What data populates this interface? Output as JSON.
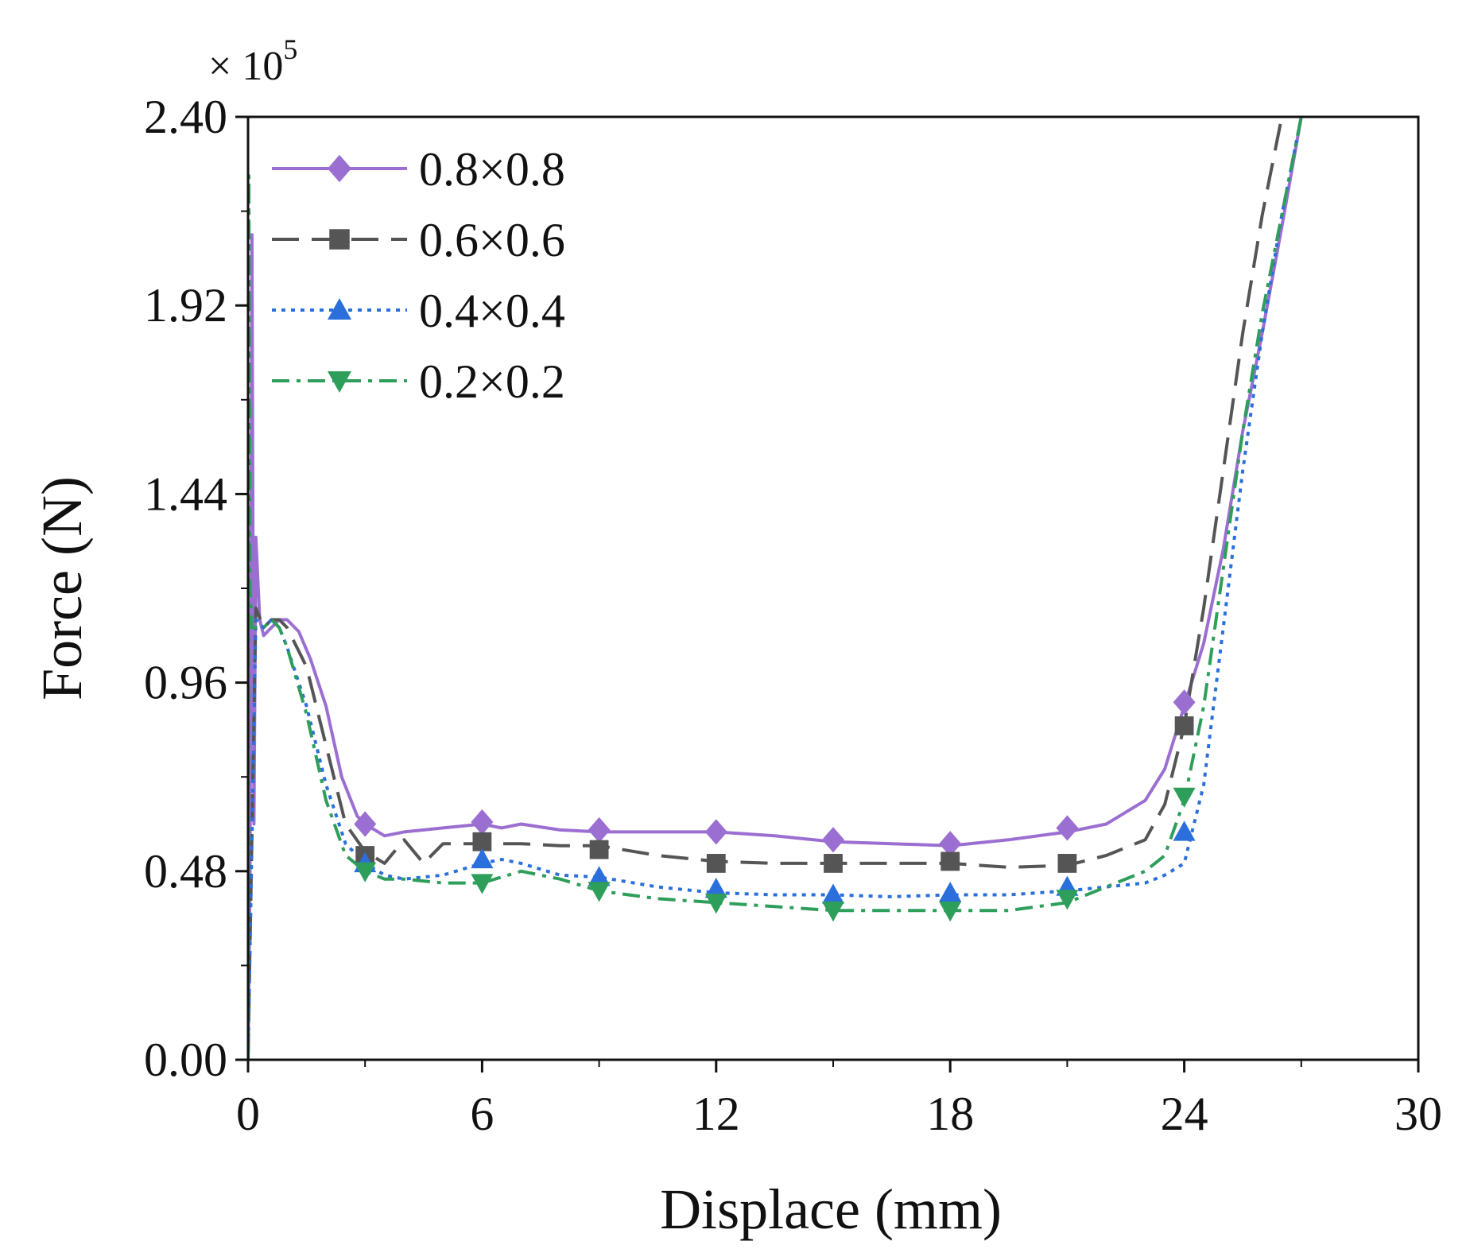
{
  "chart_data": {
    "type": "line",
    "title": "",
    "xlabel": "Displace (mm)",
    "ylabel": "Force (N)",
    "y_multiplier": {
      "base": "× 10",
      "exponent": "5"
    },
    "xlim": [
      0,
      30
    ],
    "ylim": [
      0,
      2.4
    ],
    "xticks": [
      "0",
      "6",
      "12",
      "18",
      "24",
      "30"
    ],
    "yticks": [
      "0.00",
      "0.48",
      "0.96",
      "1.44",
      "1.92",
      "2.40"
    ],
    "grid": false,
    "legend_position": "top-left",
    "series": [
      {
        "name": "0.8×0.8",
        "color": "#9b6fd1",
        "dash": "solid",
        "marker": "diamond",
        "x": [
          0,
          0.05,
          0.1,
          0.15,
          0.2,
          0.3,
          0.4,
          0.6,
          0.8,
          1.0,
          1.3,
          1.6,
          2.0,
          2.4,
          2.8,
          3.0,
          3.5,
          4.0,
          5.0,
          6.0,
          6.5,
          7.0,
          8.0,
          9.0,
          10.5,
          12.0,
          13.5,
          15.0,
          16.5,
          18.0,
          19.5,
          21.0,
          22.0,
          23.0,
          23.5,
          24.0,
          24.5,
          25.0,
          25.5,
          26.0,
          26.5,
          27.0
        ],
        "y": [
          0.0,
          0.46,
          2.1,
          0.6,
          1.33,
          1.12,
          1.08,
          1.1,
          1.12,
          1.12,
          1.09,
          1.02,
          0.9,
          0.72,
          0.62,
          0.6,
          0.57,
          0.58,
          0.59,
          0.6,
          0.59,
          0.6,
          0.585,
          0.58,
          0.58,
          0.58,
          0.57,
          0.555,
          0.55,
          0.545,
          0.56,
          0.58,
          0.6,
          0.66,
          0.74,
          0.9,
          1.06,
          1.3,
          1.6,
          1.85,
          2.12,
          2.4
        ],
        "marker_x": [
          3,
          6,
          9,
          12,
          15,
          18,
          21,
          24
        ],
        "marker_y": [
          0.6,
          0.605,
          0.585,
          0.58,
          0.56,
          0.55,
          0.59,
          0.91
        ]
      },
      {
        "name": "0.6×0.6",
        "color": "#555555",
        "dash": "dashed",
        "marker": "square",
        "x": [
          0,
          0.2,
          0.4,
          0.6,
          0.8,
          1.0,
          1.5,
          2.0,
          2.5,
          3.0,
          3.5,
          4.0,
          4.5,
          5.0,
          6.0,
          7.0,
          8.0,
          9.0,
          10.5,
          12.0,
          13.5,
          15.0,
          16.5,
          18.0,
          19.5,
          21.0,
          22.0,
          23.0,
          23.5,
          24.0,
          24.5,
          25.0,
          25.5,
          26.0,
          26.5
        ],
        "y": [
          0.0,
          1.15,
          1.1,
          1.12,
          1.12,
          1.1,
          1.0,
          0.8,
          0.6,
          0.53,
          0.5,
          0.56,
          0.5,
          0.55,
          0.55,
          0.55,
          0.545,
          0.545,
          0.52,
          0.505,
          0.5,
          0.5,
          0.5,
          0.5,
          0.49,
          0.495,
          0.52,
          0.56,
          0.65,
          0.85,
          1.15,
          1.5,
          1.85,
          2.15,
          2.4
        ],
        "marker_x": [
          3,
          6,
          9,
          12,
          15,
          18,
          21,
          24
        ],
        "marker_y": [
          0.52,
          0.555,
          0.535,
          0.5,
          0.5,
          0.505,
          0.5,
          0.85
        ]
      },
      {
        "name": "0.4×0.4",
        "color": "#2a6fdb",
        "dash": "dotted",
        "marker": "triangle-up",
        "x": [
          0,
          0.2,
          0.4,
          0.6,
          0.8,
          1.0,
          1.5,
          2.0,
          2.5,
          3.0,
          3.5,
          4.0,
          5.0,
          6.0,
          6.5,
          7.0,
          8.0,
          9.0,
          10.5,
          12.0,
          13.5,
          15.0,
          16.5,
          18.0,
          19.5,
          21.0,
          22.0,
          23.0,
          23.5,
          24.0,
          24.5,
          25.0,
          25.5,
          26.0,
          26.5,
          27.0
        ],
        "y": [
          0.0,
          1.12,
          1.1,
          1.12,
          1.1,
          1.05,
          0.9,
          0.7,
          0.55,
          0.5,
          0.47,
          0.46,
          0.47,
          0.5,
          0.51,
          0.5,
          0.47,
          0.465,
          0.44,
          0.425,
          0.42,
          0.42,
          0.415,
          0.42,
          0.42,
          0.43,
          0.44,
          0.45,
          0.47,
          0.5,
          0.7,
          1.1,
          1.5,
          1.85,
          2.15,
          2.4
        ],
        "marker_x": [
          3,
          6,
          9,
          12,
          15,
          18,
          21,
          24
        ],
        "marker_y": [
          0.5,
          0.51,
          0.465,
          0.435,
          0.42,
          0.425,
          0.44,
          0.58
        ]
      },
      {
        "name": "0.2×0.2",
        "color": "#2e9e5b",
        "dash": "dashdot",
        "marker": "triangle-down",
        "x": [
          0,
          0.02,
          0.05,
          0.1,
          0.2,
          0.4,
          0.6,
          0.8,
          1.0,
          1.5,
          2.0,
          2.5,
          3.0,
          3.5,
          4.0,
          5.0,
          6.0,
          7.0,
          8.0,
          9.0,
          10.5,
          12.0,
          13.5,
          15.0,
          16.5,
          18.0,
          19.5,
          21.0,
          22.0,
          23.0,
          23.5,
          24.0,
          24.5,
          25.0,
          25.5,
          26.0,
          26.5,
          27.0
        ],
        "y": [
          0.0,
          2.25,
          1.2,
          1.1,
          1.1,
          1.1,
          1.12,
          1.1,
          1.05,
          0.88,
          0.66,
          0.52,
          0.48,
          0.46,
          0.46,
          0.45,
          0.45,
          0.48,
          0.46,
          0.43,
          0.41,
          0.4,
          0.39,
          0.38,
          0.38,
          0.38,
          0.38,
          0.4,
          0.44,
          0.48,
          0.52,
          0.66,
          0.9,
          1.25,
          1.6,
          1.9,
          2.15,
          2.4
        ],
        "marker_x": [
          3,
          6,
          9,
          12,
          15,
          18,
          21,
          24
        ],
        "marker_y": [
          0.48,
          0.45,
          0.43,
          0.4,
          0.38,
          0.38,
          0.41,
          0.67
        ]
      }
    ]
  }
}
